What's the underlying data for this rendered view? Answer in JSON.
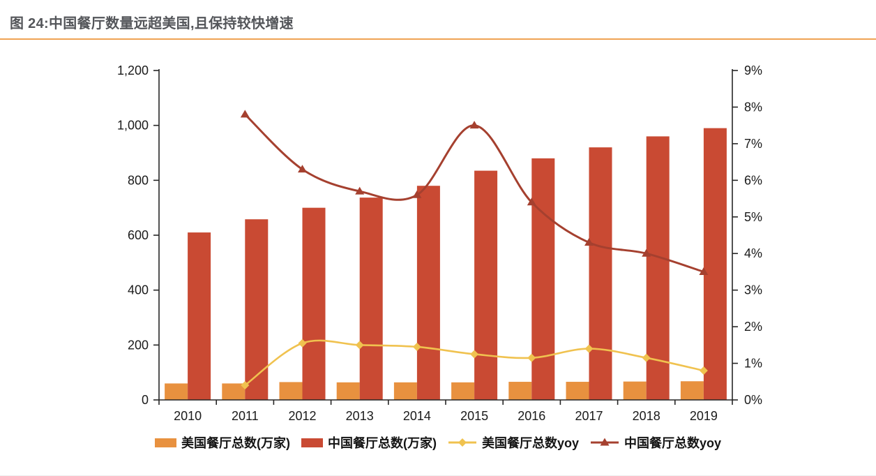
{
  "title": "图 24:中国餐厅数量远超美国,且保持较快增速",
  "theme": {
    "title_color": "#54565a",
    "title_rule_color": "#f0a353",
    "axis_color": "#262626",
    "tick_label_color": "#1a1a1a",
    "background": "#ffffff"
  },
  "chart_data": {
    "type": "bar",
    "subtype": "combo bar+line, dual axis",
    "categories": [
      "2010",
      "2011",
      "2012",
      "2013",
      "2014",
      "2015",
      "2016",
      "2017",
      "2018",
      "2019"
    ],
    "series": [
      {
        "name": "美国餐厅总数(万家)",
        "type": "bar",
        "axis": "left",
        "color": "#e8913f",
        "values": [
          60,
          60,
          65,
          64,
          64,
          64,
          66,
          66,
          67,
          68
        ]
      },
      {
        "name": "中国餐厅总数(万家)",
        "type": "bar",
        "axis": "left",
        "color": "#c94a33",
        "values": [
          610,
          658,
          700,
          737,
          780,
          835,
          880,
          920,
          960,
          990
        ]
      },
      {
        "name": "美国餐厅总数yoy",
        "type": "line",
        "axis": "right",
        "marker": "diamond",
        "color": "#f0c24f",
        "values": [
          null,
          0.4,
          1.55,
          1.5,
          1.45,
          1.25,
          1.15,
          1.4,
          1.15,
          0.8
        ]
      },
      {
        "name": "中国餐厅总数yoy",
        "type": "line",
        "axis": "right",
        "marker": "triangle",
        "color": "#a5402f",
        "values": [
          null,
          7.8,
          6.3,
          5.7,
          5.6,
          7.5,
          5.4,
          4.3,
          4.0,
          3.5
        ]
      }
    ],
    "left_axis": {
      "min": 0,
      "max": 1200,
      "step": 200,
      "tick_labels": [
        "0",
        "200",
        "400",
        "600",
        "800",
        "1,000",
        "1,200"
      ]
    },
    "right_axis": {
      "min": 0,
      "max": 9,
      "step": 1,
      "tick_labels": [
        "0%",
        "1%",
        "2%",
        "3%",
        "4%",
        "5%",
        "6%",
        "7%",
        "8%",
        "9%"
      ]
    },
    "grid": false,
    "legend_position": "bottom"
  }
}
